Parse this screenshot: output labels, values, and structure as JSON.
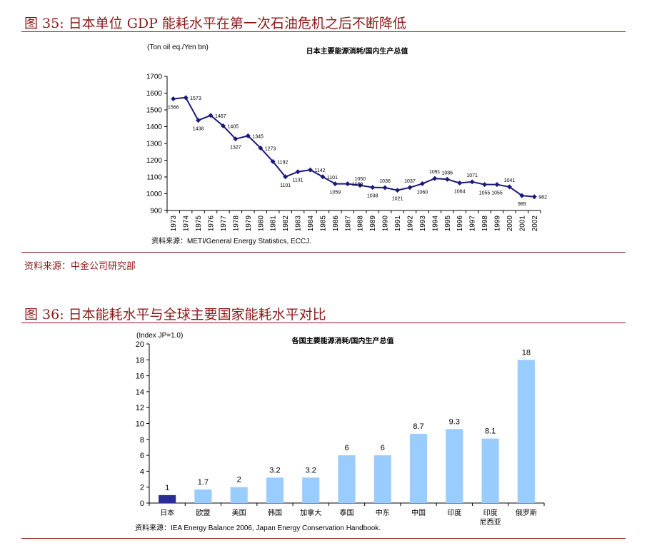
{
  "figures": [
    {
      "title": "图 35:  日本单位 GDP 能耗水平在第一次石油危机之后不断降低",
      "source_note": "资料来源：中金公司研究部"
    },
    {
      "title": "图 36:  日本能耗水平与全球主要国家能耗水平对比"
    }
  ],
  "chart_data": [
    {
      "type": "line",
      "title": "日本主要能源消耗/国内生产总值",
      "ylabel": "(Ton oil eq./Yen bn)",
      "ylim": [
        900,
        1700
      ],
      "yticks": [
        900,
        1000,
        1100,
        1200,
        1300,
        1400,
        1500,
        1600,
        1700
      ],
      "x": [
        "1973",
        "1974",
        "1975",
        "1976",
        "1977",
        "1978",
        "1979",
        "1980",
        "1981",
        "1982",
        "1983",
        "1984",
        "1985",
        "1986",
        "1987",
        "1988",
        "1989",
        "1990",
        "1991",
        "1992",
        "1993",
        "1994",
        "1995",
        "1996",
        "1997",
        "1998",
        "1999",
        "2000",
        "2001",
        "2002"
      ],
      "values": [
        1566,
        1573,
        1438,
        1467,
        1405,
        1327,
        1345,
        1273,
        1192,
        1101,
        1131,
        1142,
        1101,
        1059,
        1059,
        1050,
        1038,
        1036,
        1021,
        1037,
        1060,
        1091,
        1086,
        1064,
        1071,
        1055,
        1055,
        1041,
        989,
        982
      ],
      "labels": [
        "1566",
        "1573",
        "1438",
        "1467",
        "1405",
        "1327",
        "1345",
        "1273",
        "1192",
        "1101",
        "1131",
        "1142",
        "1101",
        "1059",
        "1059",
        "1050",
        "1038",
        "1036",
        "1021",
        "1037",
        "1060",
        "1091",
        "1086",
        "1064",
        "1071",
        "1055",
        "1055",
        "1041",
        "989",
        "982"
      ],
      "label_pos": [
        "below",
        "right",
        "below",
        "right",
        "right",
        "below",
        "right",
        "right",
        "right",
        "below",
        "below",
        "right",
        "right",
        "below",
        "right",
        "above",
        "below",
        "above",
        "below",
        "above",
        "below",
        "above",
        "above",
        "below",
        "above",
        "below",
        "below",
        "above",
        "below",
        "right"
      ],
      "source": "资料来源：METI/General Energy Statistics, ECCJ.",
      "color": "#1a1a7a"
    },
    {
      "type": "bar",
      "title": "各国主要能源消耗/国内生产总值",
      "ylabel": "(Index JP=1.0)",
      "ylim": [
        0,
        20
      ],
      "yticks": [
        0,
        2,
        4,
        6,
        8,
        10,
        12,
        14,
        16,
        18,
        20
      ],
      "categories": [
        "日本",
        "欧盟",
        "美国",
        "韩国",
        "加拿大",
        "泰国",
        "中东",
        "中国",
        "印度",
        "印度尼西亚",
        "俄罗斯"
      ],
      "category_lines": [
        [
          "日本"
        ],
        [
          "欧盟"
        ],
        [
          "美国"
        ],
        [
          "韩国"
        ],
        [
          "加拿大"
        ],
        [
          "泰国"
        ],
        [
          "中东"
        ],
        [
          "中国"
        ],
        [
          "印度"
        ],
        [
          "印度",
          "尼西亚"
        ],
        [
          "俄罗斯"
        ]
      ],
      "values": [
        1,
        1.7,
        2,
        3.2,
        3.2,
        6,
        6,
        8.7,
        9.3,
        8.1,
        18
      ],
      "labels": [
        "1",
        "1.7",
        "2",
        "3.2",
        "3.2",
        "6",
        "6",
        "8.7",
        "9.3",
        "8.1",
        "18"
      ],
      "highlight_color": "#2b2b9a",
      "bar_color": "#99ccff",
      "source": "资料来源：IEA Energy Balance 2006, Japan Energy Conservation Handbook."
    }
  ]
}
